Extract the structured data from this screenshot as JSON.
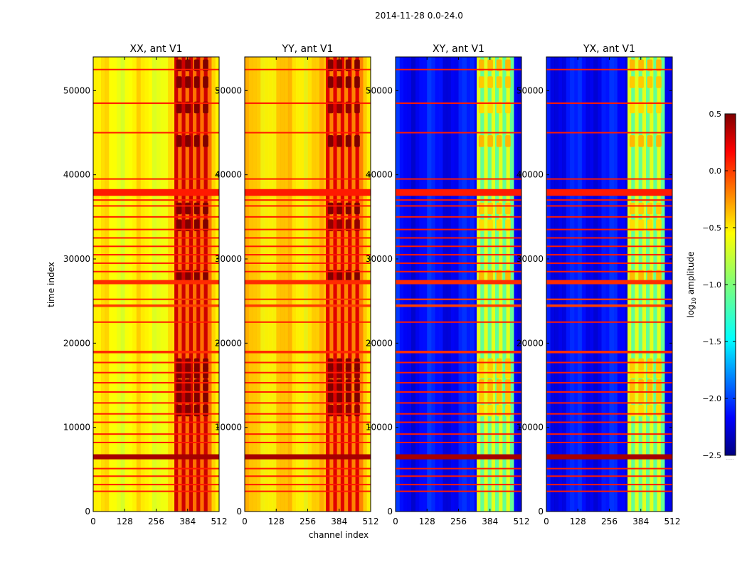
{
  "figure_title": "2014-11-28 0.0-24.0",
  "chart_data": {
    "type": "heatmap",
    "suptitle": "2014-11-28 0.0-24.0",
    "xlabel": "channel index",
    "ylabel": "time index",
    "xlim": [
      0,
      512
    ],
    "ylim": [
      0,
      54000
    ],
    "xticks": [
      0,
      128,
      256,
      384,
      512
    ],
    "yticks": [
      0,
      10000,
      20000,
      30000,
      40000,
      50000
    ],
    "colormap": "jet",
    "colorbar": {
      "label": "log10 amplitude",
      "label_base": "log",
      "label_sub": "10",
      "label_rest": " amplitude",
      "range": [
        -2.5,
        0.5
      ],
      "ticks": [
        0.5,
        0.0,
        -0.5,
        -1.0,
        -1.5,
        -2.0,
        -2.5
      ],
      "tick_labels": [
        "0.5",
        "0.0",
        "−0.5",
        "−1.0",
        "−1.5",
        "−2.0",
        "−2.5"
      ]
    },
    "panels": [
      {
        "title": "XX, ant V1",
        "base_level": -0.55,
        "active_band_level": 0.05
      },
      {
        "title": "YY, ant V1",
        "base_level": -0.45,
        "active_band_level": 0.0
      },
      {
        "title": "XY, ant V1",
        "base_level": -2.15,
        "active_band_level": -0.9
      },
      {
        "title": "YX, ant V1",
        "base_level": -2.15,
        "active_band_level": -0.9
      }
    ],
    "active_channel_range": [
      330,
      480
    ],
    "flagged_time_bands": [
      {
        "start": 37500,
        "end": 38300,
        "level": 0.1
      },
      {
        "start": 27000,
        "end": 27500,
        "level": 0.05
      },
      {
        "start": 18800,
        "end": 19100,
        "level": 0.05
      },
      {
        "start": 6200,
        "end": 6800,
        "level": 0.4
      },
      {
        "start": 24300,
        "end": 24600,
        "level": 0.0
      },
      {
        "start": 25100,
        "end": 25300,
        "level": 0.0
      }
    ],
    "flagged_time_lines": [
      2400,
      3200,
      4200,
      5100,
      8200,
      9200,
      10600,
      11600,
      12900,
      14200,
      15300,
      16500,
      17700,
      22500,
      28500,
      29500,
      30500,
      31500,
      32500,
      33500,
      35000,
      36300,
      37000,
      39500,
      45000,
      48500,
      52500
    ]
  }
}
